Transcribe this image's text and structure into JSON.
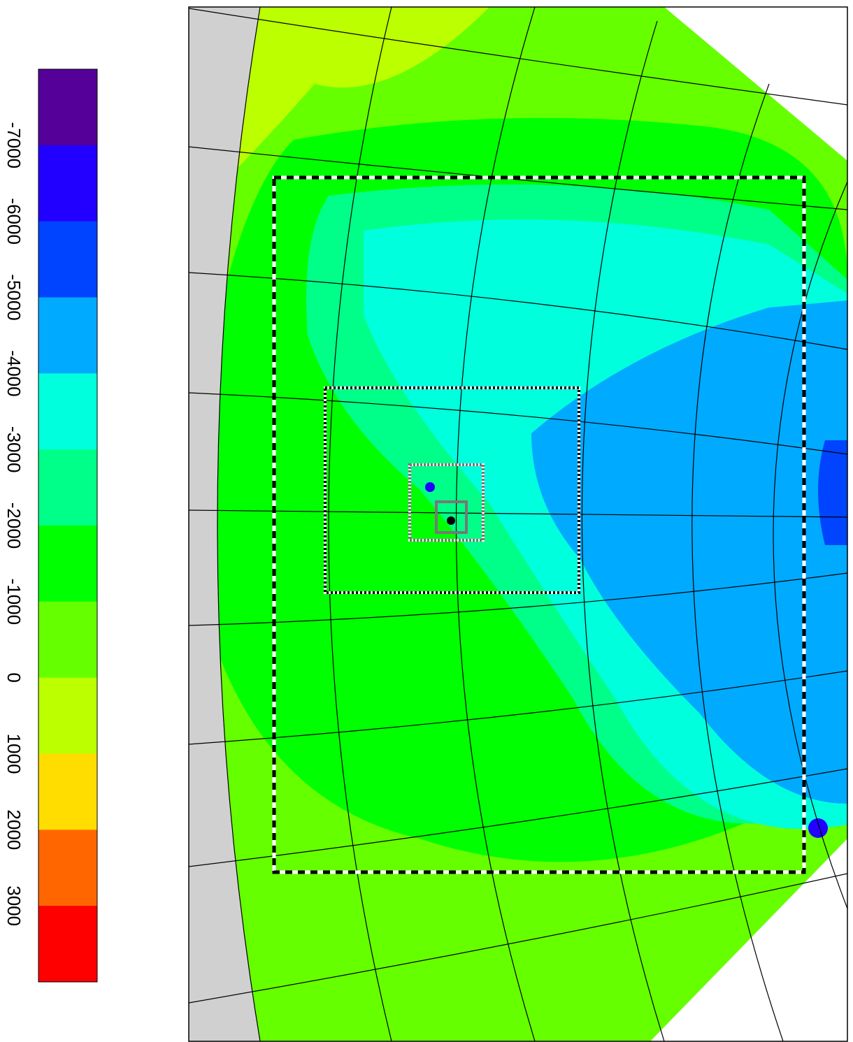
{
  "colorbar": {
    "ticks": [
      -7000,
      -6000,
      -5000,
      -4000,
      -3000,
      -2000,
      -1000,
      0,
      1000,
      2000,
      3000
    ],
    "colors": [
      "#550099",
      "#2200ff",
      "#0044ff",
      "#00aaff",
      "#00ffdd",
      "#00ff88",
      "#00ff00",
      "#66ff00",
      "#bbff00",
      "#ffdd00",
      "#ff6600",
      "#ff0000"
    ]
  }
}
